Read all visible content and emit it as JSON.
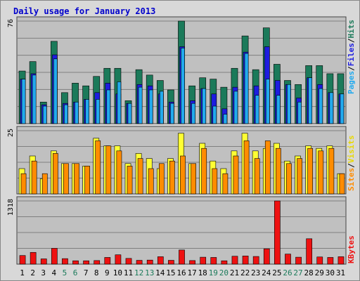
{
  "chart_data": [
    {
      "type": "bar",
      "title": "Daily usage for January 2013",
      "panel": "top",
      "ymax_label": "76",
      "ylim": [
        0,
        76
      ],
      "ylabel_parts": [
        "Pages",
        "Files",
        "Hits"
      ],
      "categories": [
        "1",
        "2",
        "3",
        "4",
        "5",
        "6",
        "7",
        "8",
        "9",
        "10",
        "11",
        "12",
        "13",
        "14",
        "15",
        "16",
        "17",
        "18",
        "19",
        "20",
        "21",
        "22",
        "23",
        "24",
        "25",
        "26",
        "27",
        "28",
        "29",
        "30",
        "31"
      ],
      "series": [
        {
          "name": "Hits",
          "color": "#1b7a5a",
          "values": [
            39,
            46,
            16,
            61,
            23,
            30,
            28,
            35,
            41,
            41,
            17,
            40,
            36,
            32,
            25,
            76,
            28,
            34,
            33,
            27,
            41,
            65,
            40,
            71,
            44,
            32,
            29,
            43,
            43,
            37,
            37
          ]
        },
        {
          "name": "Files",
          "color": "#1d1de0",
          "values": [
            33,
            37,
            14,
            51,
            15,
            16,
            18,
            23,
            30,
            22,
            15,
            29,
            28,
            22,
            16,
            57,
            17,
            26,
            22,
            11,
            27,
            53,
            28,
            57,
            32,
            29,
            19,
            34,
            29,
            23,
            22
          ]
        },
        {
          "name": "Pages",
          "color": "#22aaee",
          "values": [
            33,
            36,
            13,
            48,
            14,
            16,
            18,
            18,
            25,
            31,
            15,
            27,
            25,
            24,
            15,
            56,
            15,
            26,
            13,
            7,
            24,
            52,
            21,
            33,
            21,
            29,
            16,
            34,
            26,
            23,
            22
          ]
        }
      ]
    },
    {
      "type": "bar",
      "panel": "middle",
      "ymax_label": "25",
      "ylim": [
        0,
        25
      ],
      "ylabel_parts": [
        "Sites",
        "Visits"
      ],
      "categories": [
        "1",
        "2",
        "3",
        "4",
        "5",
        "6",
        "7",
        "8",
        "9",
        "10",
        "11",
        "12",
        "13",
        "14",
        "15",
        "16",
        "17",
        "18",
        "19",
        "20",
        "21",
        "22",
        "23",
        "24",
        "25",
        "26",
        "27",
        "28",
        "29",
        "30",
        "31"
      ],
      "series": [
        {
          "name": "Visits",
          "color": "#ffff33",
          "values": [
            10,
            15,
            6,
            17,
            12,
            12,
            11,
            22,
            19,
            19,
            12,
            16,
            14,
            10,
            14,
            24,
            12,
            20,
            13,
            10,
            17,
            24,
            17,
            18,
            20,
            13,
            15,
            19,
            18,
            19,
            8
          ]
        },
        {
          "name": "Sites",
          "color": "#ff8c00",
          "values": [
            8,
            13,
            8,
            16,
            12,
            12,
            11,
            21,
            19,
            17,
            11,
            14,
            10,
            12,
            13,
            15,
            12,
            18,
            10,
            8,
            15,
            21,
            14,
            21,
            18,
            12,
            14,
            18,
            17,
            18,
            8
          ]
        }
      ]
    },
    {
      "type": "bar",
      "panel": "bottom",
      "ymax_label": "1318",
      "ylim": [
        0,
        1318
      ],
      "ylabel_parts": [
        "KBytes"
      ],
      "categories": [
        "1",
        "2",
        "3",
        "4",
        "5",
        "6",
        "7",
        "8",
        "9",
        "10",
        "11",
        "12",
        "13",
        "14",
        "15",
        "16",
        "17",
        "18",
        "19",
        "20",
        "21",
        "22",
        "23",
        "24",
        "25",
        "26",
        "27",
        "28",
        "29",
        "30",
        "31"
      ],
      "series": [
        {
          "name": "KBytes",
          "color": "#ee1111",
          "values": [
            180,
            245,
            110,
            330,
            115,
            70,
            70,
            75,
            140,
            195,
            120,
            80,
            85,
            155,
            80,
            295,
            75,
            145,
            140,
            70,
            165,
            170,
            160,
            320,
            1318,
            210,
            145,
            530,
            150,
            140,
            155
          ]
        }
      ]
    }
  ],
  "x_label_colors": {
    "weekday": "#000000",
    "weekend": "#1b7a5a",
    "weekend_days": [
      "5",
      "6",
      "12",
      "13",
      "19",
      "20",
      "26",
      "27"
    ]
  },
  "colors": {
    "title": "#0000cc",
    "panel_bg": "#c0c0c0",
    "outer_bg": "#d8d8d8",
    "gridline": "#7f7f7f",
    "separator": "#000000"
  }
}
